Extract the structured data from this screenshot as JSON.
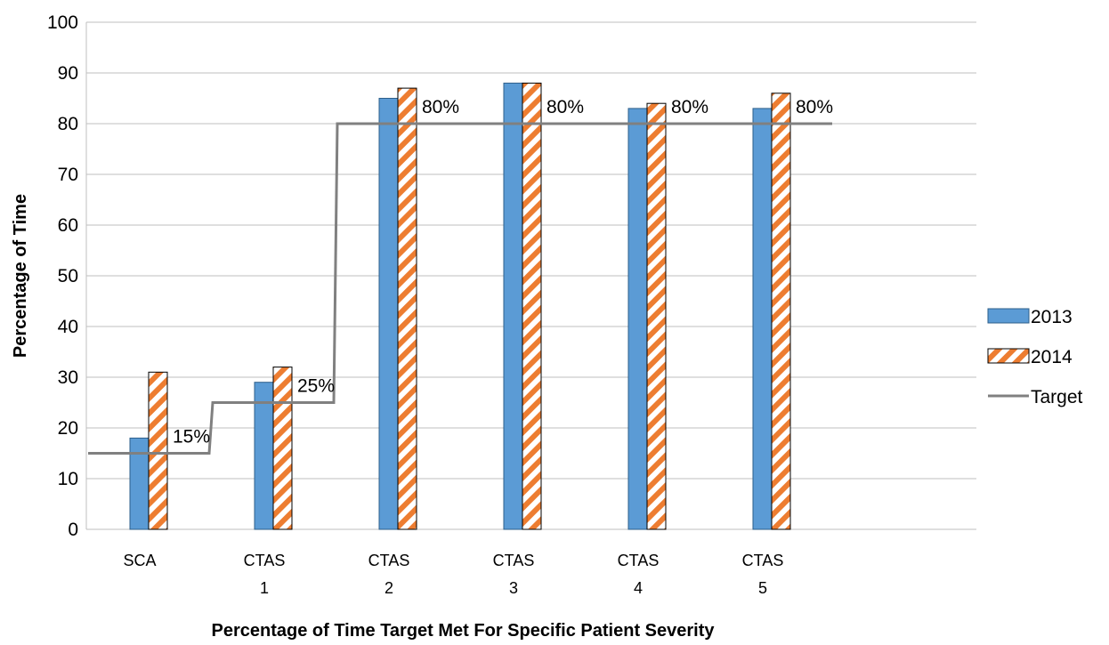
{
  "chart_data": {
    "type": "bar",
    "categories": [
      [
        "SCA"
      ],
      [
        "CTAS",
        "1"
      ],
      [
        "CTAS",
        "2"
      ],
      [
        "CTAS",
        "3"
      ],
      [
        "CTAS",
        "4"
      ],
      [
        "CTAS",
        "5"
      ]
    ],
    "series": [
      {
        "name": "2013",
        "kind": "bar",
        "color": "#5b9bd5",
        "pattern": "solid",
        "values": [
          18,
          29,
          85,
          88,
          83,
          83
        ]
      },
      {
        "name": "2014",
        "kind": "bar",
        "color": "#ed7d31",
        "pattern": "diagonal-stripes",
        "values": [
          31,
          32,
          87,
          88,
          84,
          86
        ]
      },
      {
        "name": "Target",
        "kind": "line",
        "color": "#808080",
        "style": "step",
        "values": [
          15,
          25,
          80,
          80,
          80,
          80
        ]
      }
    ],
    "data_labels": [
      "15%",
      "25%",
      "80%",
      "80%",
      "80%",
      "80%"
    ],
    "title": "",
    "xlabel": "Percentage of Time Target Met For Specific Patient Severity",
    "ylabel": "Percentage of Time",
    "ylim": [
      0,
      100
    ],
    "yticks": [
      0,
      10,
      20,
      30,
      40,
      50,
      60,
      70,
      80,
      90,
      100
    ],
    "grid": true,
    "legend": "right"
  }
}
